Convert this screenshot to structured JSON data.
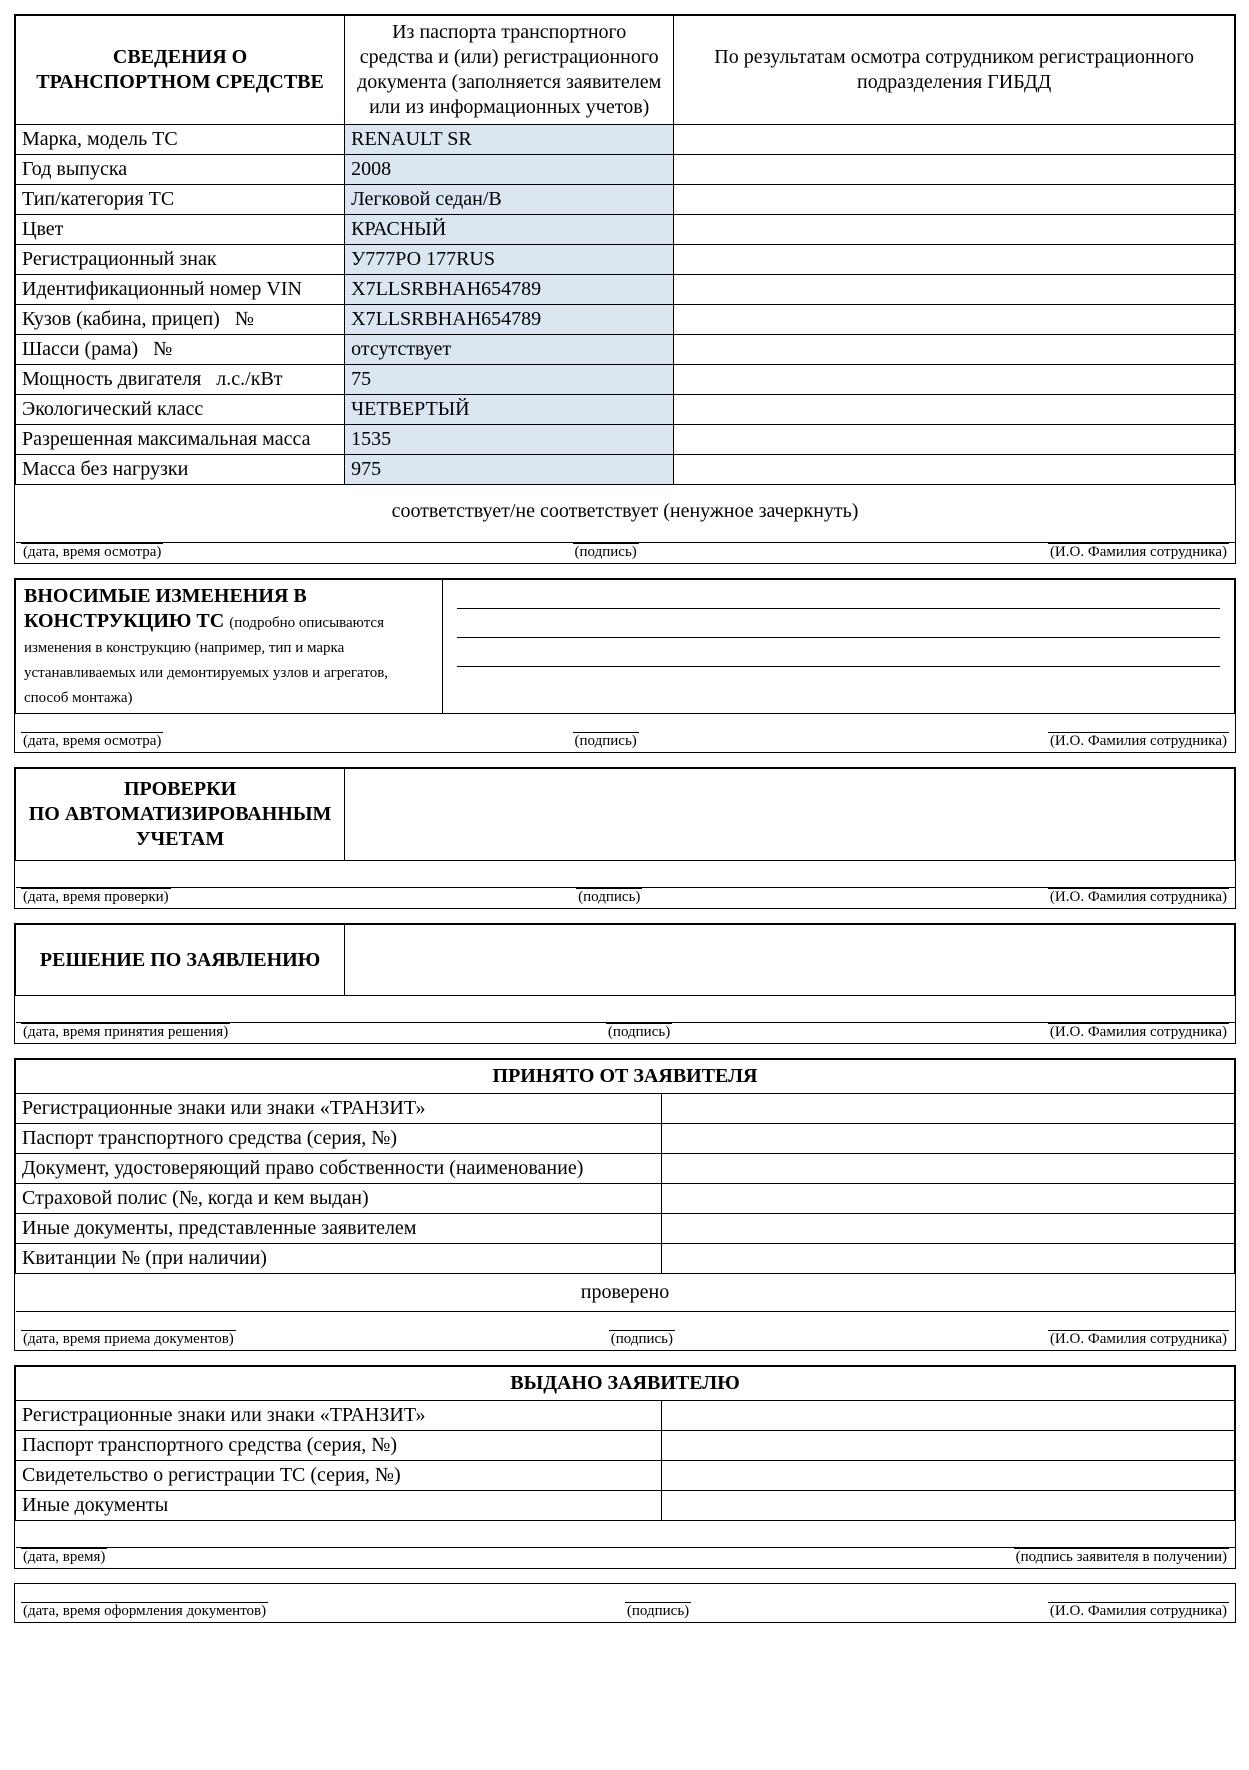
{
  "colors": {
    "filled_bg": "#dce6f1",
    "border": "#000000",
    "background": "#ffffff"
  },
  "vehicle": {
    "title": "СВЕДЕНИЯ О ТРАНСПОРТНОМ СРЕДСТВЕ",
    "col2": "Из паспорта транспортного средства и (или) регистрационного документа (заполняется заявителем или из информационных учетов)",
    "col3": "По результатам осмотра сотрудником регистрационного подразделения ГИБДД",
    "rows": [
      {
        "label": "Марка, модель ТС",
        "value": "RENAULT SR"
      },
      {
        "label": "Год выпуска",
        "value": "2008"
      },
      {
        "label": "Тип/категория ТС",
        "value": "Легковой седан/В"
      },
      {
        "label": "Цвет",
        "value": "КРАСНЫЙ"
      },
      {
        "label": "Регистрационный знак",
        "value": "У777РО 177RUS"
      },
      {
        "label": "Идентификационный номер VIN",
        "value": "X7LLSRBHAH654789"
      },
      {
        "label": "Кузов (кабина, прицеп)   №",
        "value": "X7LLSRBHAH654789"
      },
      {
        "label": "Шасси (рама)   №",
        "value": "отсутствует"
      },
      {
        "label": "Мощность двигателя   л.с./кВт",
        "value": "75"
      },
      {
        "label": "Экологический класс",
        "value": "ЧЕТВЕРТЫЙ"
      },
      {
        "label": "Разрешенная максимальная масса",
        "value": "1535"
      },
      {
        "label": "Масса без нагрузки",
        "value": "975"
      }
    ],
    "conformity": "соответствует/не соответствует (ненужное зачеркнуть)"
  },
  "sig": {
    "date_inspect": "(дата, время осмотра)",
    "date_check": "(дата, время проверки)",
    "date_decision": "(дата, время принятия решения)",
    "date_docs": "(дата, время приема документов)",
    "date_time": "(дата, время)",
    "date_issue": "(дата, время оформления документов)",
    "sign": "(подпись)",
    "fio": "(И.О. Фамилия сотрудника)",
    "applicant_sign": "(подпись заявителя в получении)"
  },
  "changes": {
    "title": "ВНОСИМЫЕ ИЗМЕНЕНИЯ В КОНСТРУКЦИЮ ТС",
    "note": "(подробно описываются изменения в конструкцию (например, тип и марка устанавливаемых или демонтируемых узлов и агрегатов, способ монтажа)"
  },
  "checks": {
    "title": "ПРОВЕРКИ ПО АВТОМАТИЗИРОВАННЫМ УЧЕТАМ"
  },
  "decision": {
    "title": "РЕШЕНИЕ ПО ЗАЯВЛЕНИЮ"
  },
  "received": {
    "title": "ПРИНЯТО ОТ ЗАЯВИТЕЛЯ",
    "rows": [
      "Регистрационные знаки или знаки «ТРАНЗИТ»",
      "Паспорт транспортного средства (серия, №)",
      "Документ, удостоверяющий право собственности (наименование)",
      "Страховой полис (№, когда и кем выдан)",
      "Иные документы, представленные заявителем",
      "Квитанции № (при наличии)"
    ],
    "checked": "проверено"
  },
  "issued": {
    "title": "ВЫДАНО ЗАЯВИТЕЛЮ",
    "rows": [
      "Регистрационные знаки или знаки «ТРАНЗИТ»",
      "Паспорт транспортного средства (серия, №)",
      "Свидетельство о регистрации ТС (серия, №)",
      "Иные документы"
    ]
  }
}
